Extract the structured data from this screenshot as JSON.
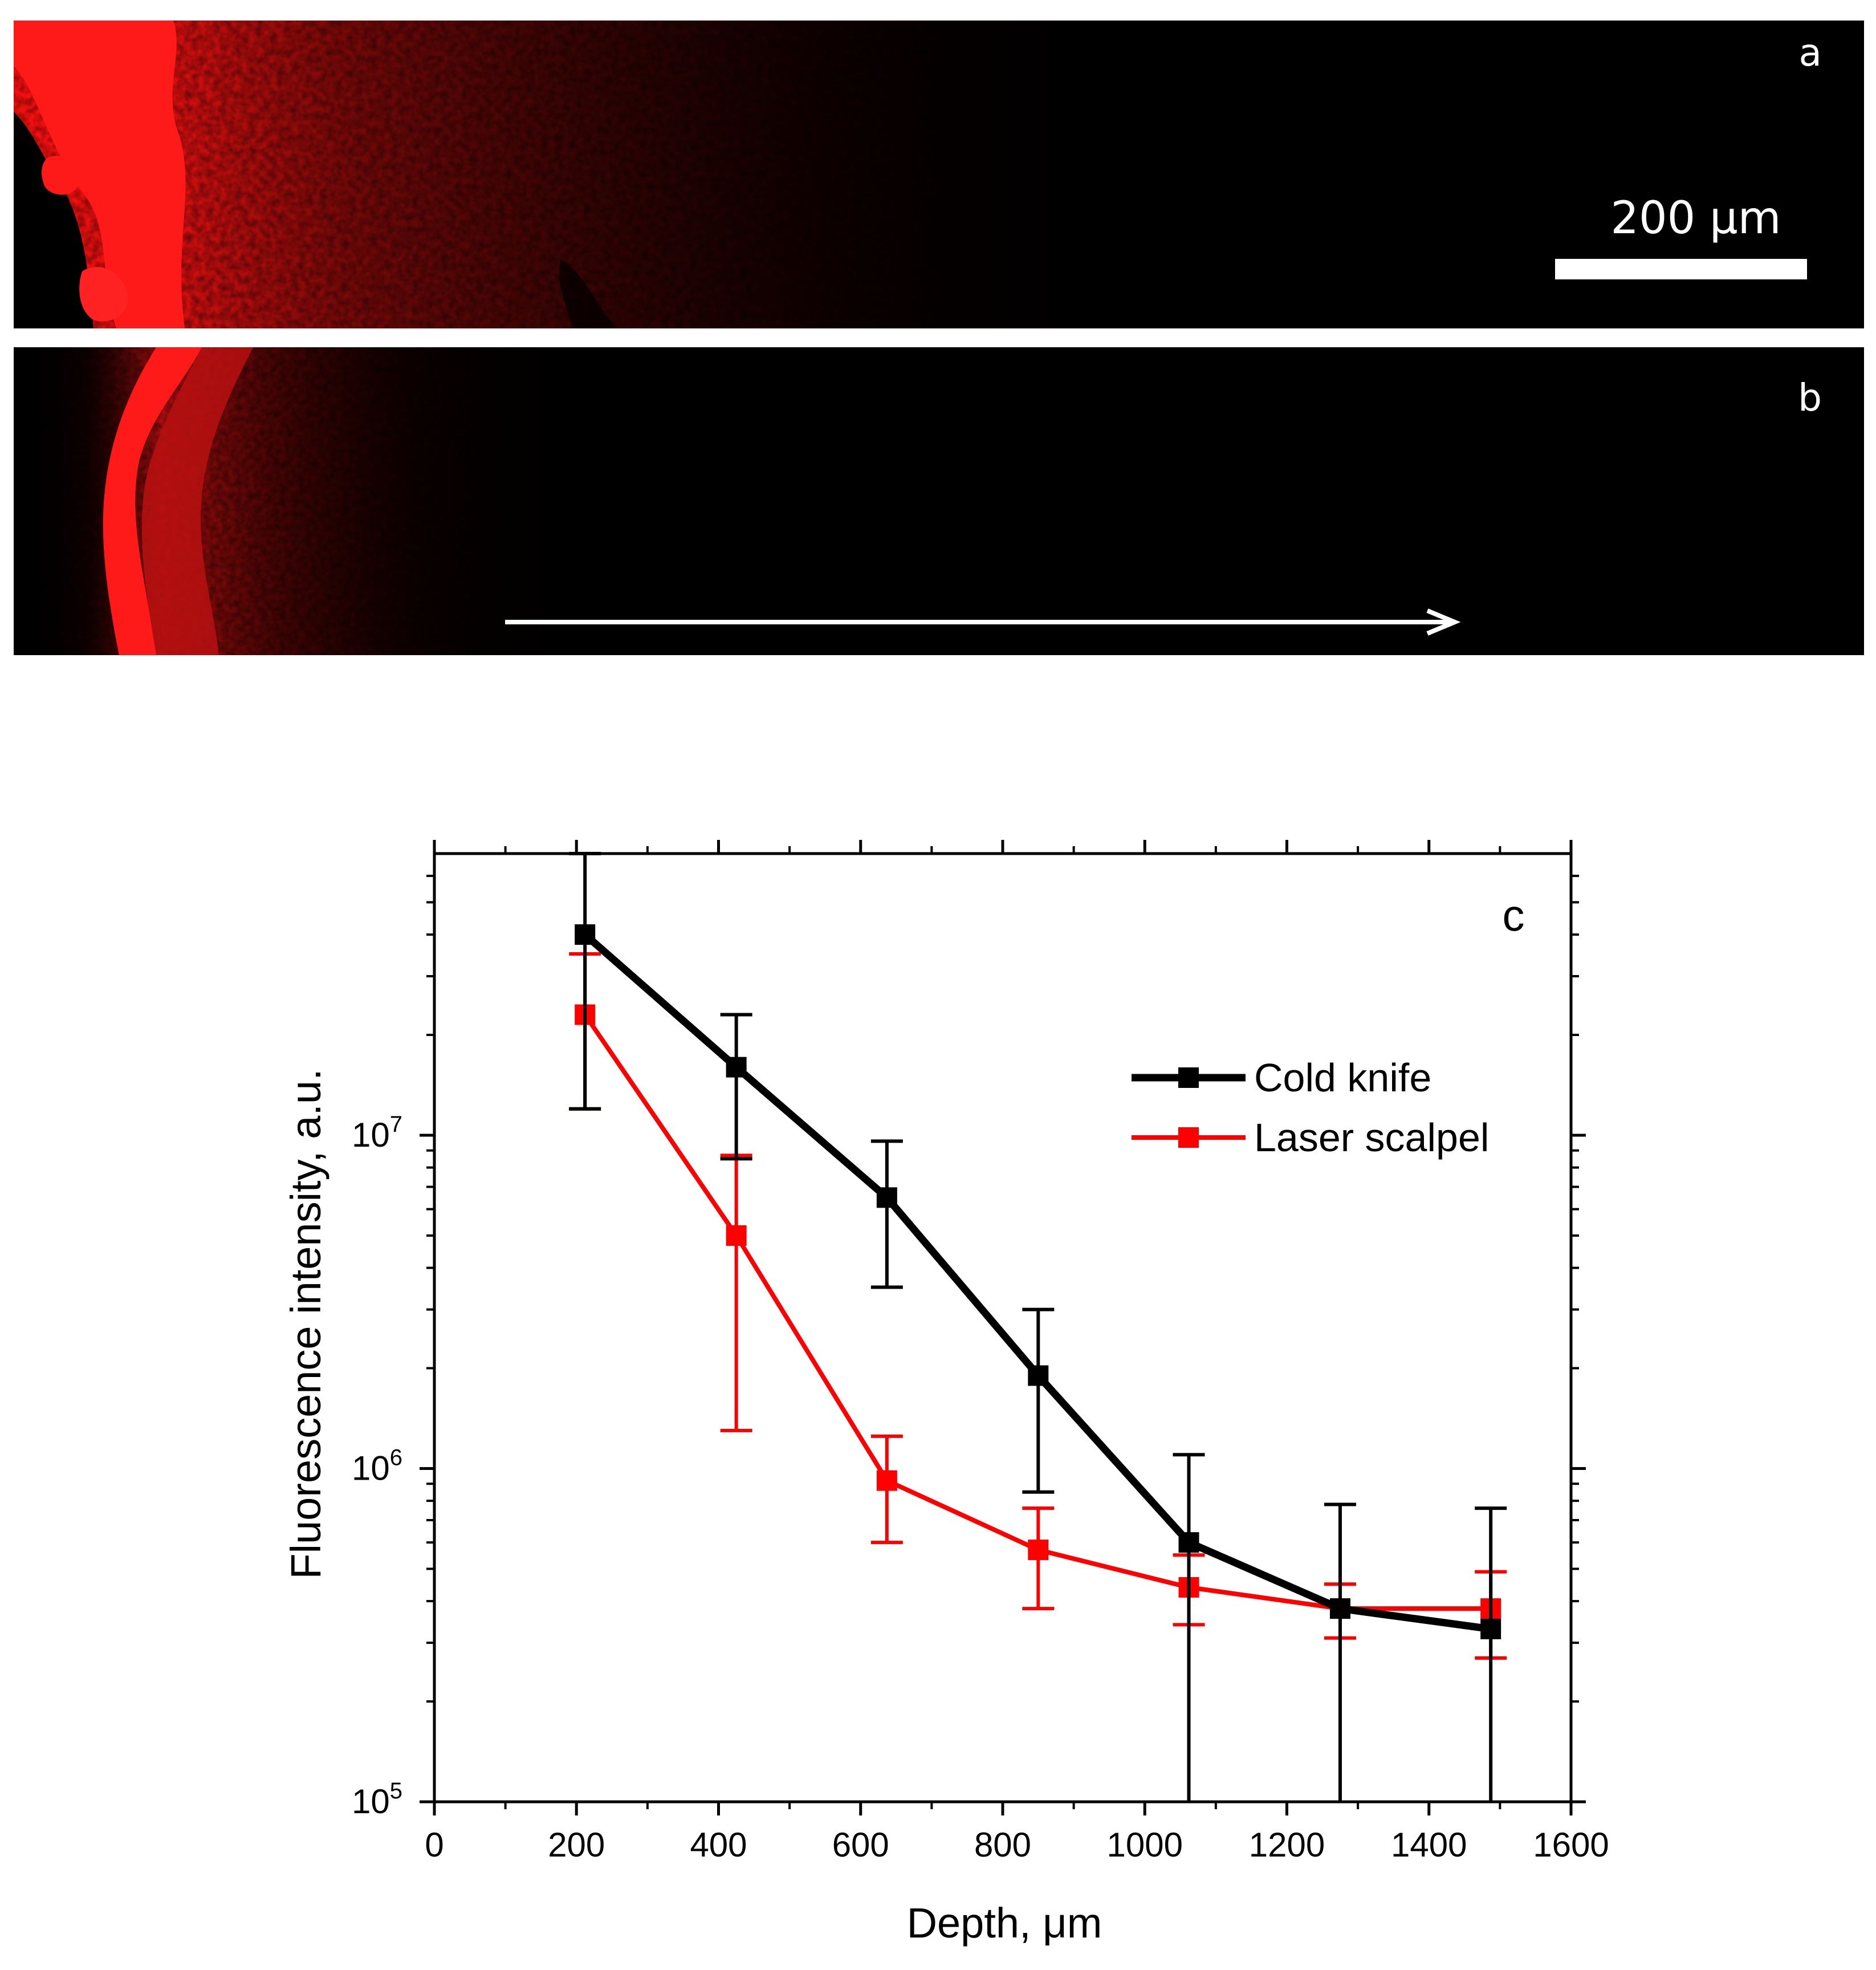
{
  "panels": {
    "a": {
      "letter": "a",
      "tissue_color": "#ff1a1a"
    },
    "b": {
      "letter": "b",
      "tissue_color": "#ff1a1a",
      "scale_bar_label": "200 μm"
    }
  },
  "chart_data": {
    "type": "line",
    "panel_letter": "c",
    "xlabel": "Depth, μm",
    "ylabel": "Fluorescence intensity, a.u.",
    "xlim": [
      0,
      1600
    ],
    "ylim": [
      100000,
      70000000
    ],
    "yscale": "log",
    "x_ticks": [
      "0",
      "200",
      "400",
      "600",
      "800",
      "1000",
      "1200",
      "1400",
      "1600"
    ],
    "y_ticks": [
      {
        "base": "10",
        "exp": "5",
        "value": 100000
      },
      {
        "base": "10",
        "exp": "6",
        "value": 1000000
      },
      {
        "base": "10",
        "exp": "7",
        "value": 10000000
      }
    ],
    "grid": false,
    "legend_position": "top-right",
    "series": [
      {
        "name": "Cold knife",
        "color": "#000000",
        "x": [
          212,
          425,
          637,
          850,
          1062,
          1275,
          1487
        ],
        "y": [
          40000000,
          16000000,
          6500000,
          1900000,
          600000,
          380000,
          330000
        ],
        "err_low": [
          12000000,
          8500000,
          3500000,
          850000,
          100000,
          100000,
          100000
        ],
        "err_high": [
          70000000,
          23000000,
          9600000,
          3000000,
          1100000,
          780000,
          760000
        ]
      },
      {
        "name": "Laser scalpel",
        "color": "#ff0000",
        "x": [
          212,
          425,
          637,
          850,
          1062,
          1275,
          1487
        ],
        "y": [
          23000000,
          5000000,
          920000,
          570000,
          440000,
          380000,
          380000
        ],
        "err_low": [
          12000000,
          1300000,
          600000,
          380000,
          340000,
          310000,
          270000
        ],
        "err_high": [
          35000000,
          8700000,
          1250000,
          760000,
          550000,
          450000,
          490000
        ]
      }
    ]
  }
}
